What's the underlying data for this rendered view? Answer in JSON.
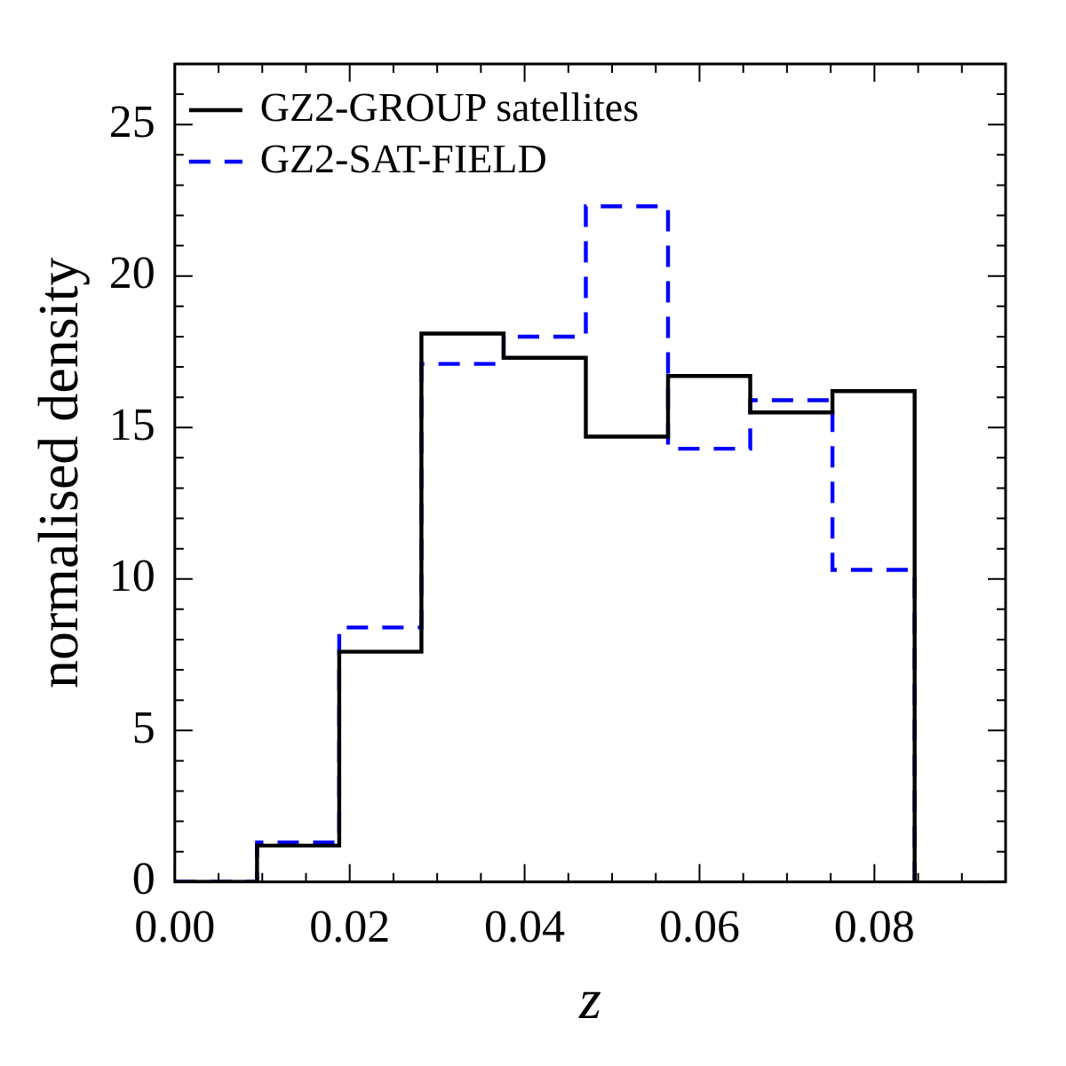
{
  "chart_data": {
    "type": "histogram",
    "xlabel": "z",
    "ylabel": "normalised density",
    "bins": [
      0,
      0.0094,
      0.0188,
      0.0282,
      0.0376,
      0.047,
      0.0564,
      0.0658,
      0.0752,
      0.0846
    ],
    "series": [
      {
        "name": "GZ2-GROUP satellites",
        "color": "#000000",
        "line_style": "solid",
        "values": [
          0,
          1.2,
          7.6,
          18.1,
          17.3,
          14.7,
          16.7,
          15.5,
          16.2
        ]
      },
      {
        "name": "GZ2-SAT-FIELD",
        "color": "#0000ff",
        "line_style": "dashed",
        "values": [
          0,
          1.3,
          8.4,
          17.1,
          18.0,
          22.3,
          14.3,
          15.9,
          10.3
        ]
      }
    ],
    "xlim": [
      0,
      0.095
    ],
    "xticks": [
      {
        "value": 0,
        "label": "0.00"
      },
      {
        "value": 0.005,
        "label": null
      },
      {
        "value": 0.01,
        "label": null
      },
      {
        "value": 0.015,
        "label": null
      },
      {
        "value": 0.02,
        "label": "0.02"
      },
      {
        "value": 0.025,
        "label": null
      },
      {
        "value": 0.03,
        "label": null
      },
      {
        "value": 0.035,
        "label": null
      },
      {
        "value": 0.04,
        "label": "0.04"
      },
      {
        "value": 0.045,
        "label": null
      },
      {
        "value": 0.05,
        "label": null
      },
      {
        "value": 0.055,
        "label": null
      },
      {
        "value": 0.06,
        "label": "0.06"
      },
      {
        "value": 0.065,
        "label": null
      },
      {
        "value": 0.07,
        "label": null
      },
      {
        "value": 0.075,
        "label": null
      },
      {
        "value": 0.08,
        "label": "0.08"
      },
      {
        "value": 0.085,
        "label": null
      },
      {
        "value": 0.09,
        "label": null
      }
    ],
    "ylim": [
      0,
      27
    ],
    "yticks": [
      0,
      {
        "value": 1,
        "label": null
      },
      {
        "value": 2,
        "label": null
      },
      {
        "value": 3,
        "label": null
      },
      {
        "value": 4,
        "label": null
      },
      5,
      {
        "value": 6,
        "label": null
      },
      {
        "value": 7,
        "label": null
      },
      {
        "value": 8,
        "label": null
      },
      {
        "value": 9,
        "label": null
      },
      10,
      {
        "value": 11,
        "label": null
      },
      {
        "value": 12,
        "label": null
      },
      {
        "value": 13,
        "label": null
      },
      {
        "value": 14,
        "label": null
      },
      15,
      {
        "value": 16,
        "label": null
      },
      {
        "value": 17,
        "label": null
      },
      {
        "value": 18,
        "label": null
      },
      {
        "value": 19,
        "label": null
      },
      20,
      {
        "value": 21,
        "label": null
      },
      {
        "value": 22,
        "label": null
      },
      {
        "value": 23,
        "label": null
      },
      {
        "value": 24,
        "label": null
      },
      25,
      {
        "value": 26,
        "label": null
      }
    ],
    "grid": false,
    "legend": "top left"
  }
}
